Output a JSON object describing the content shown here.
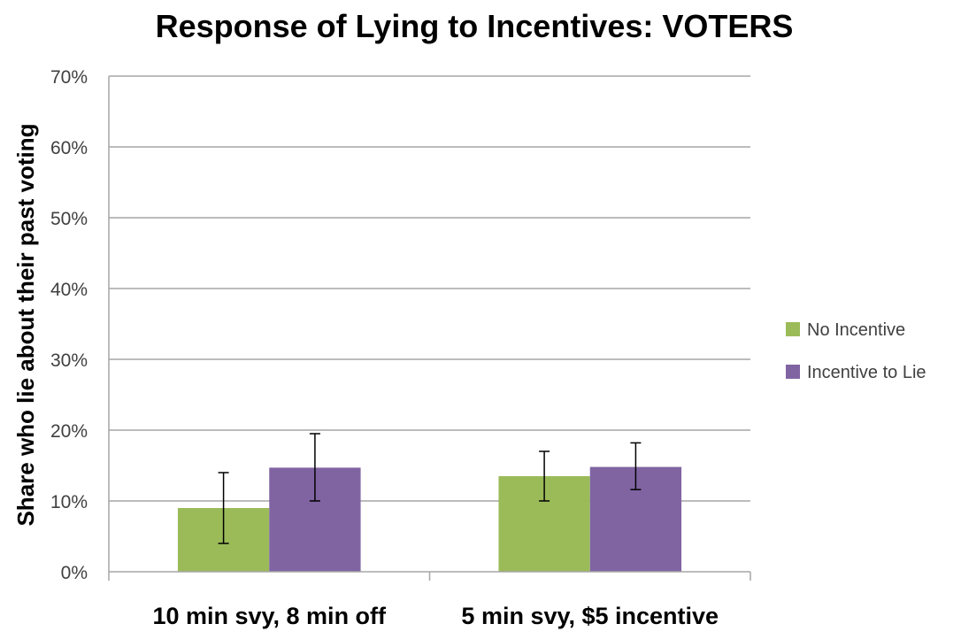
{
  "chart_data": {
    "type": "bar",
    "title": "Response of Lying to Incentives: VOTERS",
    "xlabel": "",
    "ylabel": "Share who lie about their past voting",
    "categories": [
      "10 min svy, 8 min off",
      "5 min svy, $5 incentive"
    ],
    "series": [
      {
        "name": "No Incentive",
        "color": "#9BBB59",
        "values": [
          0.09,
          0.135
        ],
        "error_low": [
          0.04,
          0.1
        ],
        "error_high": [
          0.14,
          0.17
        ]
      },
      {
        "name": "Incentive to Lie",
        "color": "#8064A2",
        "values": [
          0.147,
          0.148
        ],
        "error_low": [
          0.1,
          0.116
        ],
        "error_high": [
          0.195,
          0.182
        ]
      }
    ],
    "ylim": [
      0,
      0.7
    ],
    "yticks": [
      0,
      0.1,
      0.2,
      0.3,
      0.4,
      0.5,
      0.6,
      0.7
    ],
    "ytick_labels": [
      "0%",
      "10%",
      "20%",
      "30%",
      "40%",
      "50%",
      "60%",
      "70%"
    ],
    "grid": true,
    "legend_position": "right"
  }
}
